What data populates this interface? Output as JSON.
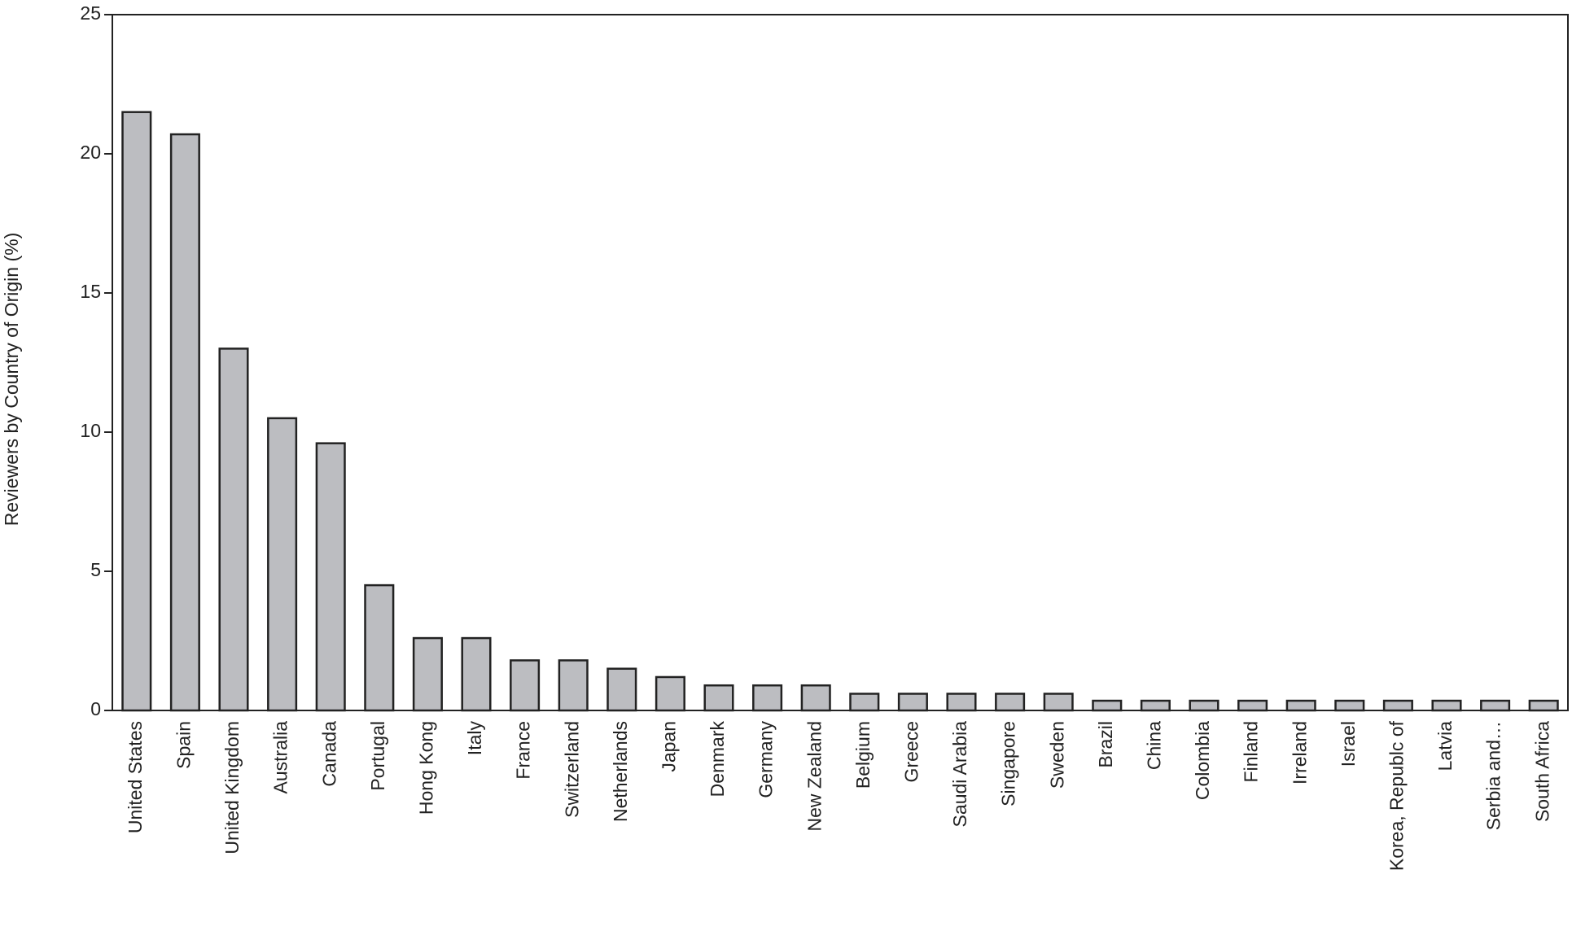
{
  "chart_data": {
    "type": "bar",
    "y_label": "Reviewers by Country of Origin (%)",
    "categories": [
      "United States",
      "Spain",
      "United Kingdom",
      "Australia",
      "Canada",
      "Portugal",
      "Hong Kong",
      "Italy",
      "France",
      "Switzerland",
      "Netherlands",
      "Japan",
      "Denmark",
      "Germany",
      "New Zealand",
      "Belgium",
      "Greece",
      "Saudi Arabia",
      "Singapore",
      "Sweden",
      "Brazil",
      "China",
      "Colombia",
      "Finland",
      "Irreland",
      "Israel",
      "Korea, Republc of",
      "Latvia",
      "Serbia and…",
      "South Africa"
    ],
    "values": [
      21.5,
      20.7,
      13.0,
      10.5,
      9.6,
      4.5,
      2.6,
      2.6,
      1.8,
      1.8,
      1.5,
      1.2,
      0.9,
      0.9,
      0.9,
      0.6,
      0.6,
      0.6,
      0.6,
      0.6,
      0.35,
      0.35,
      0.35,
      0.35,
      0.35,
      0.35,
      0.35,
      0.35,
      0.35,
      0.35
    ],
    "color": "#bcbdc1",
    "ylim": [
      0,
      25
    ],
    "yticks": [
      0,
      5,
      10,
      15,
      20,
      25
    ]
  }
}
